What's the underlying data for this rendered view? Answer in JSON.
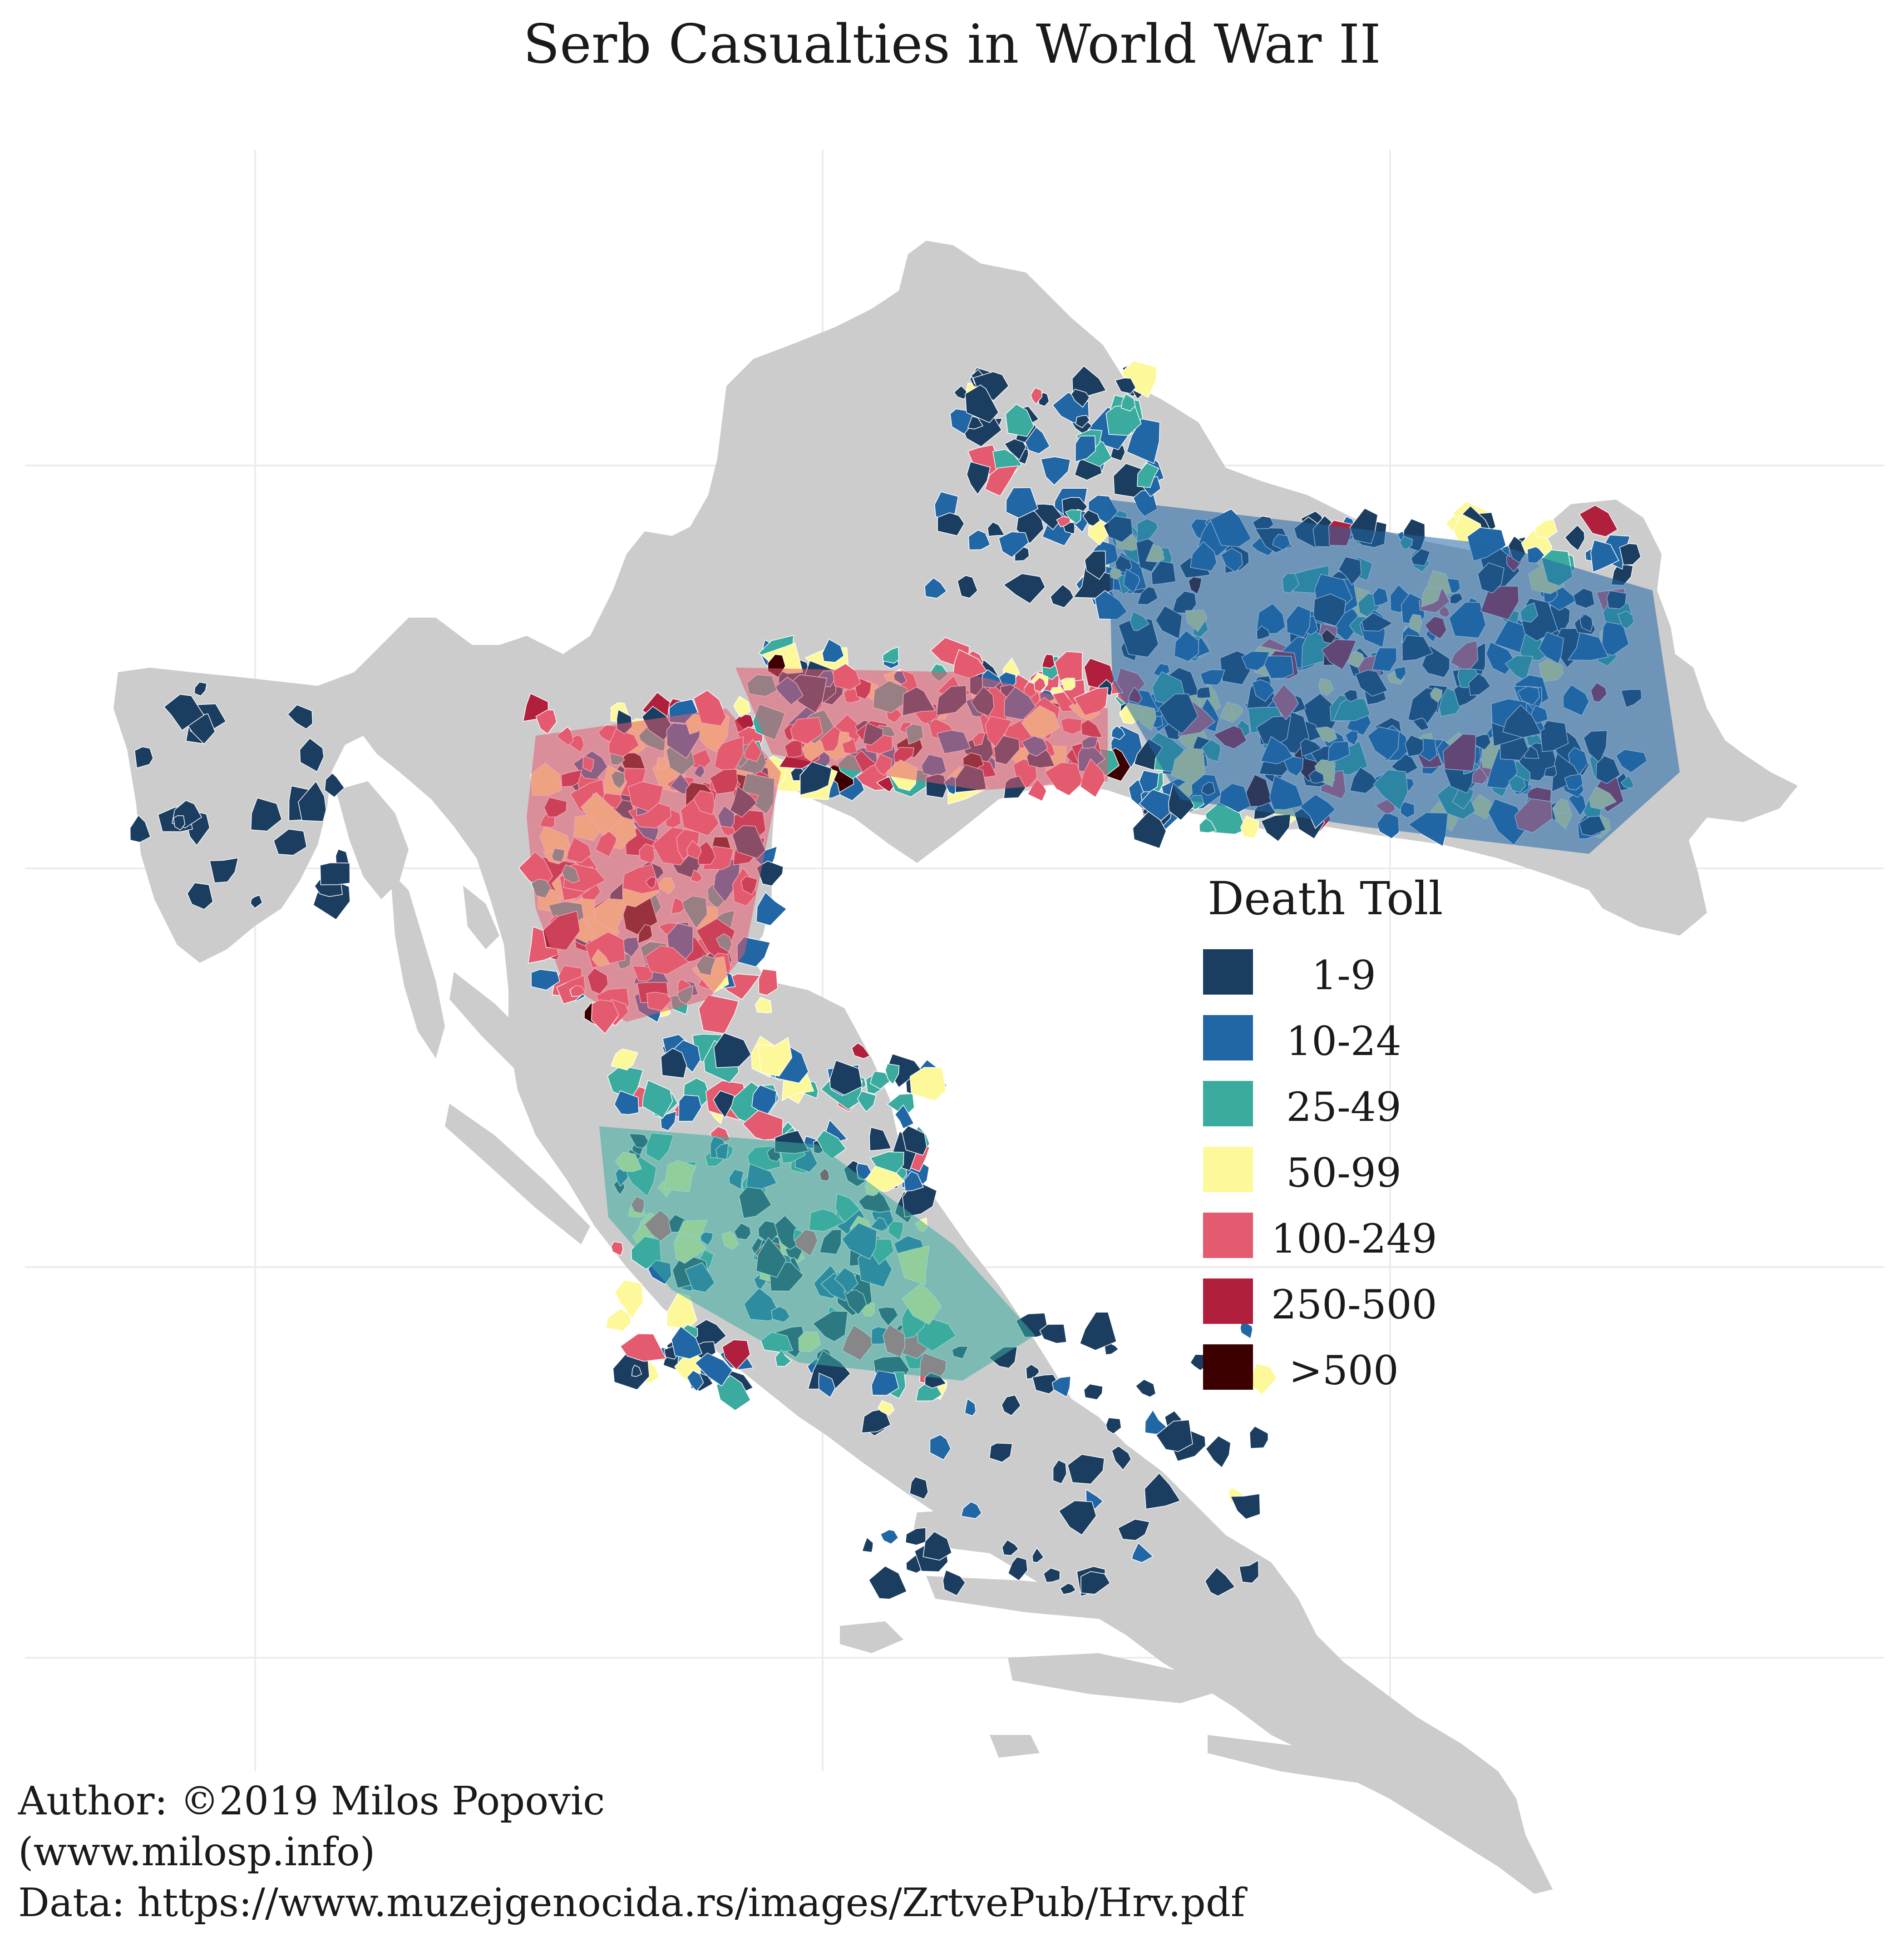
{
  "title": "Serb Casualties in World War II",
  "legend": {
    "title": "Death Toll",
    "items": [
      {
        "label": "1-9",
        "color": "#1b3d60"
      },
      {
        "label": "10-24",
        "color": "#2166a5"
      },
      {
        "label": "25-49",
        "color": "#3aab9e"
      },
      {
        "label": "50-99",
        "color": "#fdf99a"
      },
      {
        "label": "100-249",
        "color": "#e45b70"
      },
      {
        "label": "250-500",
        "color": "#b0203c"
      },
      {
        "label": ">500",
        "color": "#3d0000"
      }
    ]
  },
  "colors": {
    "no_data": "#cccccc",
    "grid": "#ececec",
    "background": "#ffffff"
  },
  "credits": {
    "author": "Author: ©2019 Milos Popovic",
    "website": "(www.milosp.info)",
    "data_source": "Data: https://www.muzejgenocida.rs/images/ZrtvePub/Hrv.pdf"
  }
}
